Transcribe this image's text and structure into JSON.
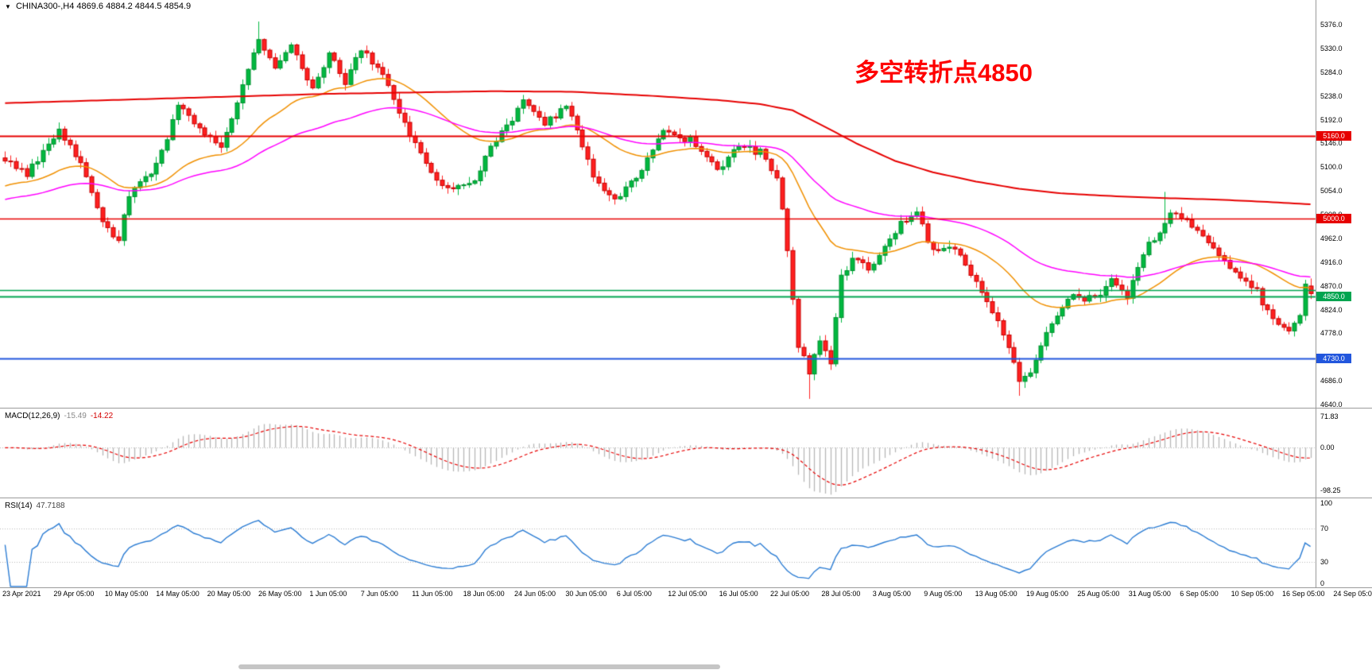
{
  "colors": {
    "bull": "#00b840",
    "bull_border": "#008f2e",
    "bear": "#ff2020",
    "bear_border": "#c40000",
    "background": "#ffffff",
    "separator": "#9a9a9a",
    "grid_dotted": "#b8b8b8",
    "scrollbar": "#c5c5c5"
  },
  "header": {
    "marker": "▼",
    "symbol": "CHINA300-,H4",
    "ohlc": "4869.6 4884.2 4844.5 4854.9"
  },
  "annotation": {
    "text": "多空转折点4850",
    "color": "#fe0000"
  },
  "macd_panel": {
    "label": "MACD(12,26,9)",
    "value_main": "-15.49",
    "value_signal": "-14.22",
    "ticks": [
      {
        "v": 71.83,
        "t": "71.83"
      },
      {
        "v": 0,
        "t": "0.00"
      },
      {
        "v": -98.25,
        "t": "-98.25"
      }
    ]
  },
  "rsi_panel": {
    "label": "RSI(14)",
    "value": "47.7188",
    "ticks": [
      {
        "v": 100,
        "t": "100"
      },
      {
        "v": 70,
        "t": "70"
      },
      {
        "v": 30,
        "t": "30"
      },
      {
        "v": 0,
        "t": "0"
      }
    ]
  },
  "chart_data": [
    {
      "type": "candlestick",
      "title": "CHINA300- H4",
      "bars_total": 243,
      "ylim": [
        4640,
        5376
      ],
      "y_ticks": [
        "5376.0",
        "5330.0",
        "5284.0",
        "5238.0",
        "5192.0",
        "5146.0",
        "5100.0",
        "5054.0",
        "5008.0",
        "4962.0",
        "4916.0",
        "4870.0",
        "4824.0",
        "4778.0",
        "4732.0",
        "4686.0",
        "4640.0"
      ],
      "x_labels": [
        "23 Apr 2021",
        "29 Apr 05:00",
        "10 May 05:00",
        "14 May 05:00",
        "20 May 05:00",
        "26 May 05:00",
        "1 Jun 05:00",
        "7 Jun 05:00",
        "11 Jun 05:00",
        "18 Jun 05:00",
        "24 Jun 05:00",
        "30 Jun 05:00",
        "6 Jul 05:00",
        "12 Jul 05:00",
        "16 Jul 05:00",
        "22 Jul 05:00",
        "28 Jul 05:00",
        "3 Aug 05:00",
        "9 Aug 05:00",
        "13 Aug 05:00",
        "19 Aug 05:00",
        "25 Aug 05:00",
        "31 Aug 05:00",
        "6 Sep 05:00",
        "10 Sep 05:00",
        "16 Sep 05:00",
        "24 Sep 05:00"
      ],
      "last_candle": {
        "open": 4869.6,
        "high": 4884.2,
        "low": 4844.5,
        "close": 4854.9
      },
      "price_keyframes": [
        [
          0,
          5118
        ],
        [
          4,
          5085
        ],
        [
          10,
          5172
        ],
        [
          14,
          5105
        ],
        [
          17,
          5022
        ],
        [
          19,
          4978
        ],
        [
          21,
          4962
        ],
        [
          23,
          5048
        ],
        [
          27,
          5090
        ],
        [
          30,
          5160
        ],
        [
          32,
          5218
        ],
        [
          36,
          5170
        ],
        [
          40,
          5135
        ],
        [
          44,
          5260
        ],
        [
          47,
          5345
        ],
        [
          50,
          5298
        ],
        [
          53,
          5332
        ],
        [
          57,
          5252
        ],
        [
          60,
          5318
        ],
        [
          63,
          5266
        ],
        [
          66,
          5330
        ],
        [
          70,
          5282
        ],
        [
          73,
          5205
        ],
        [
          78,
          5102
        ],
        [
          82,
          5058
        ],
        [
          86,
          5062
        ],
        [
          91,
          5152
        ],
        [
          96,
          5225
        ],
        [
          100,
          5180
        ],
        [
          104,
          5222
        ],
        [
          109,
          5082
        ],
        [
          113,
          5032
        ],
        [
          118,
          5092
        ],
        [
          122,
          5172
        ],
        [
          127,
          5152
        ],
        [
          132,
          5092
        ],
        [
          136,
          5142
        ],
        [
          140,
          5128
        ],
        [
          143,
          5085
        ],
        [
          145,
          4945
        ],
        [
          147,
          4755
        ],
        [
          149,
          4705
        ],
        [
          151,
          4770
        ],
        [
          153,
          4725
        ],
        [
          155,
          4890
        ],
        [
          157,
          4920
        ],
        [
          160,
          4905
        ],
        [
          163,
          4945
        ],
        [
          166,
          4990
        ],
        [
          169,
          5010
        ],
        [
          172,
          4935
        ],
        [
          176,
          4940
        ],
        [
          180,
          4880
        ],
        [
          183,
          4820
        ],
        [
          186,
          4750
        ],
        [
          188,
          4680
        ],
        [
          190,
          4700
        ],
        [
          192,
          4760
        ],
        [
          195,
          4815
        ],
        [
          198,
          4852
        ],
        [
          202,
          4842
        ],
        [
          205,
          4878
        ],
        [
          208,
          4852
        ],
        [
          212,
          4948
        ],
        [
          216,
          5008
        ],
        [
          220,
          4990
        ],
        [
          224,
          4940
        ],
        [
          228,
          4890
        ],
        [
          232,
          4860
        ],
        [
          235,
          4800
        ],
        [
          238,
          4788
        ],
        [
          240,
          4812
        ],
        [
          241,
          4868
        ],
        [
          242,
          4854.9
        ]
      ],
      "extremes": [
        {
          "bar": 47,
          "high": 5382
        },
        {
          "bar": 149,
          "low": 4651
        },
        {
          "bar": 188,
          "low": 4657
        },
        {
          "bar": 215,
          "high": 5052
        }
      ],
      "moving_averages": [
        {
          "name": "ma-fast-orange",
          "period": 30,
          "seed": 5060,
          "color": "#f09000",
          "width": 1.5
        },
        {
          "name": "ma-mid-magenta",
          "period": 65,
          "seed": 5035,
          "color": "#ff00ff",
          "width": 1.5
        },
        {
          "name": "ma-slow-red",
          "color": "#e60000",
          "width": 2,
          "path": [
            [
              0,
              5224
            ],
            [
              30,
              5233
            ],
            [
              60,
              5242
            ],
            [
              90,
              5247
            ],
            [
              105,
              5246
            ],
            [
              120,
              5238
            ],
            [
              132,
              5230
            ],
            [
              140,
              5222
            ],
            [
              146,
              5210
            ],
            [
              152,
              5178
            ],
            [
              158,
              5145
            ],
            [
              165,
              5112
            ],
            [
              172,
              5090
            ],
            [
              180,
              5072
            ],
            [
              188,
              5058
            ],
            [
              196,
              5049
            ],
            [
              205,
              5044
            ],
            [
              215,
              5040
            ],
            [
              225,
              5037
            ],
            [
              235,
              5032
            ],
            [
              242,
              5028
            ]
          ]
        }
      ],
      "horizontal_lines": [
        {
          "price": 5160.0,
          "color": "#e60000",
          "width": 2,
          "label": "5160.0"
        },
        {
          "price": 5000.0,
          "color": "#e60000",
          "width": 1.5,
          "label": "5000.0"
        },
        {
          "price": 4861.0,
          "color": "#00a550",
          "width": 1.5,
          "label": null
        },
        {
          "price": 4850.0,
          "color": "#00a550",
          "width": 2,
          "label": "4850.0"
        },
        {
          "price": 4730.0,
          "color": "#2256dd",
          "width": 2,
          "label": "4730.0"
        }
      ]
    },
    {
      "type": "bar",
      "name": "MACD(12,26,9)",
      "fast": 12,
      "slow": 26,
      "signal": 9,
      "ylim": [
        -98.25,
        71.83
      ],
      "hist_color": "#b6b6b6",
      "signal_color": "#e60000",
      "last_main": -15.49,
      "last_signal": -14.22
    },
    {
      "type": "line",
      "name": "RSI(14)",
      "period": 14,
      "ylim": [
        0,
        100
      ],
      "levels": [
        70,
        30
      ],
      "color": "#2b7cd3",
      "last_value": 47.7188
    }
  ]
}
